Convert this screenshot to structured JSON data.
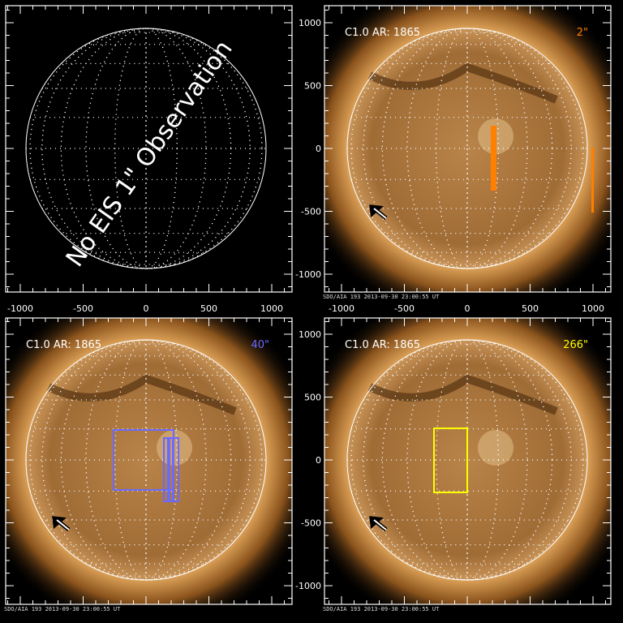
{
  "panels": [
    {
      "id": "tl",
      "note": "No EIS 1\" Observation",
      "has_image": false,
      "x_ticks": [
        "-1000",
        "-500",
        "0",
        "500",
        "1000"
      ]
    },
    {
      "id": "tr",
      "title": "C1.0 AR: 1865",
      "scale_label": "2\"",
      "scale_color": "#ff7f00",
      "caption": "SDO/AIA 193   2013-09-30 23:00:55 UT",
      "has_image": true,
      "x_ticks": [
        "-1000",
        "-500",
        "0",
        "500",
        "1000"
      ],
      "y_ticks": [
        "1000",
        "500",
        "0",
        "-500",
        "-1000"
      ]
    },
    {
      "id": "bl",
      "title": "C1.0 AR: 1865",
      "scale_label": "40\"",
      "scale_color": "#6a6aff",
      "caption": "SDO/AIA 193   2013-09-30 23:00:55 UT",
      "has_image": true
    },
    {
      "id": "br",
      "title": "C1.0 AR: 1865",
      "scale_label": "266\"",
      "scale_color": "#ffff00",
      "caption": "SDO/AIA 193   2013-09-30 23:00:55 UT",
      "has_image": true,
      "y_ticks": [
        "1000",
        "500",
        "0",
        "-500",
        "-1000"
      ]
    }
  ],
  "colors": {
    "orange": "#ff7f00",
    "blue": "#6a6aff",
    "yellow": "#ffff00"
  }
}
